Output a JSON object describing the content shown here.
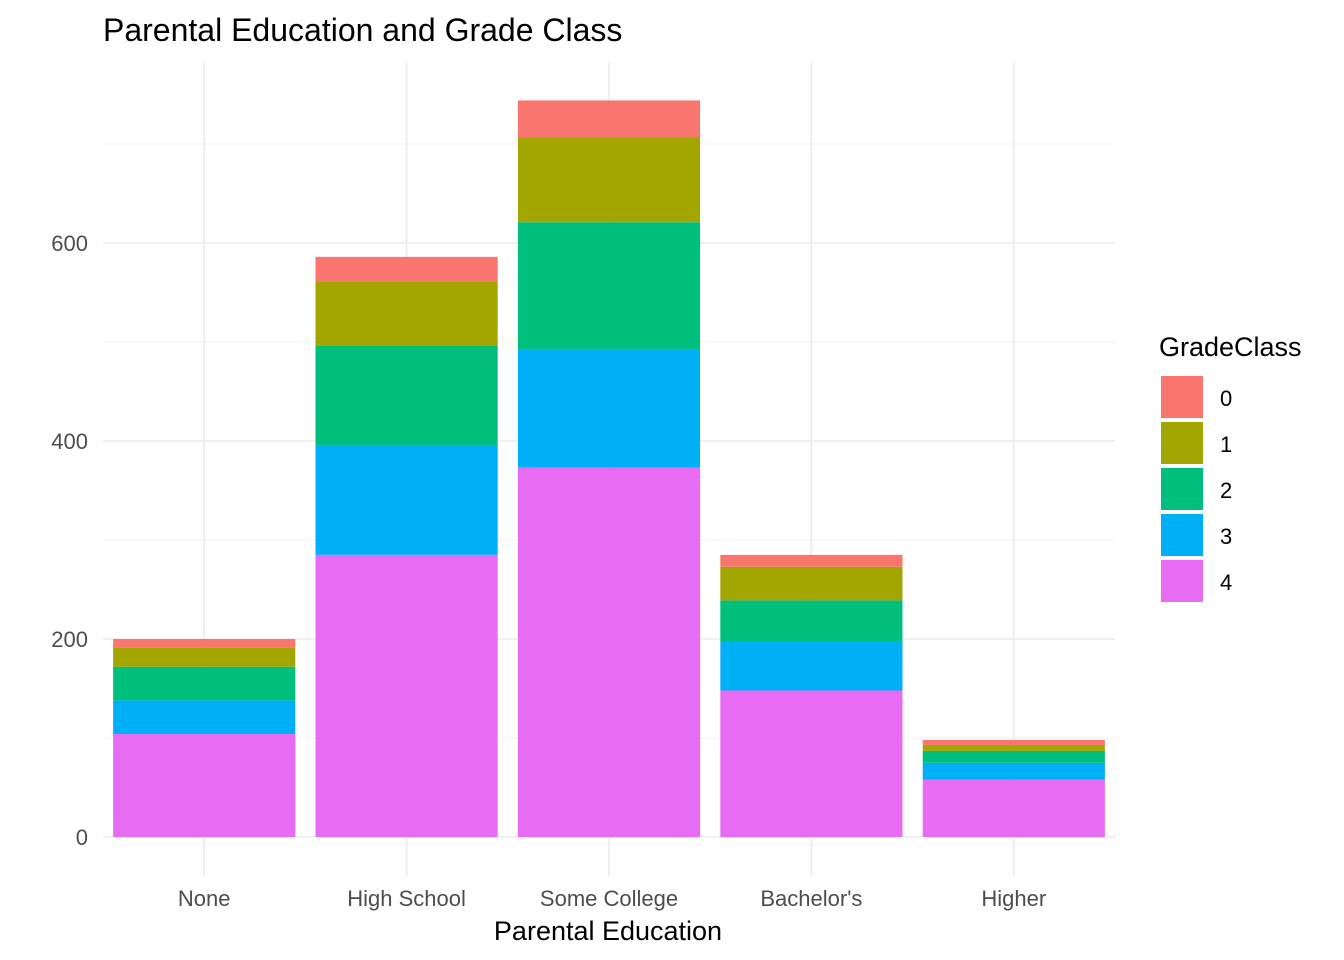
{
  "chart_data": {
    "type": "bar",
    "stacked": true,
    "title": "Parental Education and Grade Class",
    "xlabel": "Parental Education",
    "ylabel": "",
    "categories": [
      "None",
      "High School",
      "Some College",
      "Bachelor's",
      "Higher"
    ],
    "ylim": [
      0,
      745
    ],
    "yticks": [
      0,
      200,
      400,
      600
    ],
    "yticks_minor": [
      100,
      300,
      500,
      700
    ],
    "grid": true,
    "legend": {
      "title": "GradeClass",
      "position": "right"
    },
    "series": [
      {
        "name": "0",
        "color": "#F8766D",
        "values": [
          9,
          25,
          37,
          12,
          5
        ]
      },
      {
        "name": "1",
        "color": "#A3A500",
        "values": [
          19,
          65,
          86,
          34,
          6
        ]
      },
      {
        "name": "2",
        "color": "#00BF7D",
        "values": [
          34,
          100,
          128,
          42,
          12
        ]
      },
      {
        "name": "3",
        "color": "#00B0F6",
        "values": [
          34,
          111,
          120,
          49,
          17
        ]
      },
      {
        "name": "4",
        "color": "#E76BF3",
        "values": [
          104,
          285,
          373,
          148,
          58
        ]
      }
    ]
  }
}
